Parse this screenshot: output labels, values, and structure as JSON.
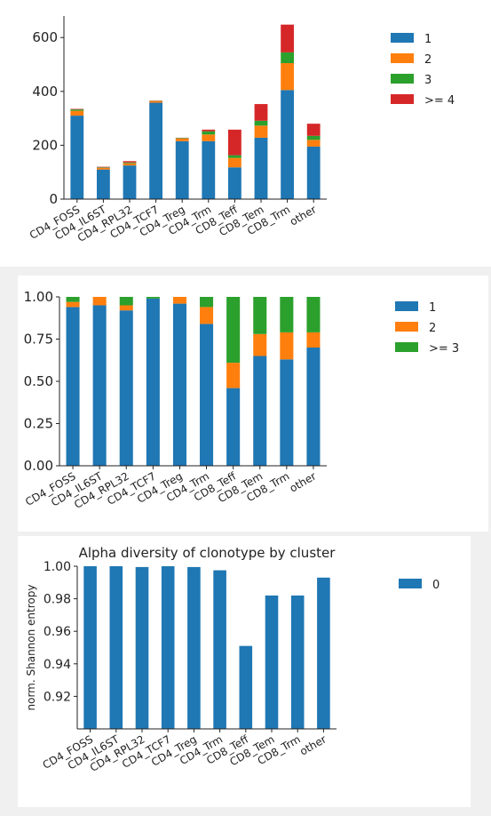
{
  "colors": {
    "c1": "#1f77b4",
    "c2": "#ff7f0e",
    "c3": "#2ca02c",
    "c4": "#d62728"
  },
  "chart_data": [
    {
      "type": "bar",
      "stacked": true,
      "categories": [
        "CD4_FOSS",
        "CD4_IL6ST",
        "CD4_RPL32",
        "CD4_TCF7",
        "CD4_Treg",
        "CD4_Trm",
        "CD8_Teff",
        "CD8_Tem",
        "CD8_Trm",
        "other"
      ],
      "series": [
        {
          "name": "1",
          "values": [
            310,
            110,
            125,
            358,
            215,
            215,
            118,
            228,
            405,
            195
          ]
        },
        {
          "name": "2",
          "values": [
            18,
            6,
            8,
            6,
            10,
            25,
            35,
            45,
            100,
            25
          ]
        },
        {
          "name": "3",
          "values": [
            5,
            2,
            3,
            1,
            2,
            12,
            10,
            18,
            40,
            15
          ]
        },
        {
          "name": ">= 4",
          "values": [
            2,
            2,
            5,
            1,
            1,
            6,
            95,
            62,
            103,
            45
          ]
        }
      ],
      "yticks": [
        "0",
        "200",
        "400",
        "600"
      ],
      "ylim": [
        0,
        680
      ],
      "legend": "right"
    },
    {
      "type": "bar",
      "stacked": true,
      "categories": [
        "CD4_FOSS",
        "CD4_IL6ST",
        "CD4_RPL32",
        "CD4_TCF7",
        "CD4_Treg",
        "CD4_Trm",
        "CD8_Teff",
        "CD8_Tem",
        "CD8_Trm",
        "other"
      ],
      "series": [
        {
          "name": "1",
          "values": [
            0.94,
            0.95,
            0.92,
            0.99,
            0.96,
            0.84,
            0.46,
            0.65,
            0.63,
            0.7
          ]
        },
        {
          "name": "2",
          "values": [
            0.03,
            0.05,
            0.03,
            0.0,
            0.04,
            0.1,
            0.15,
            0.13,
            0.16,
            0.09
          ]
        },
        {
          "name": ">= 3",
          "values": [
            0.03,
            0.0,
            0.05,
            0.01,
            0.0,
            0.06,
            0.39,
            0.22,
            0.21,
            0.21
          ]
        }
      ],
      "yticks": [
        "0.00",
        "0.25",
        "0.50",
        "0.75",
        "1.00"
      ],
      "ylim": [
        0,
        1.0
      ],
      "legend": "right"
    },
    {
      "type": "bar",
      "title": "Alpha diversity of clonotype by cluster",
      "ylabel": "norm. Shannon entropy",
      "categories": [
        "CD4_FOSS",
        "CD4_IL6ST",
        "CD4_RPL32",
        "CD4_TCF7",
        "CD4_Treg",
        "CD4_Trm",
        "CD8_Teff",
        "CD8_Tem",
        "CD8_Trm",
        "other"
      ],
      "series": [
        {
          "name": "0",
          "values": [
            1.0,
            1.0,
            0.9995,
            1.0,
            0.9995,
            0.9975,
            0.951,
            0.982,
            0.982,
            0.993
          ]
        }
      ],
      "yticks": [
        "0.92",
        "0.94",
        "0.96",
        "0.98",
        "1.00"
      ],
      "ylim": [
        0.9,
        1.0
      ],
      "legend": "right"
    }
  ]
}
